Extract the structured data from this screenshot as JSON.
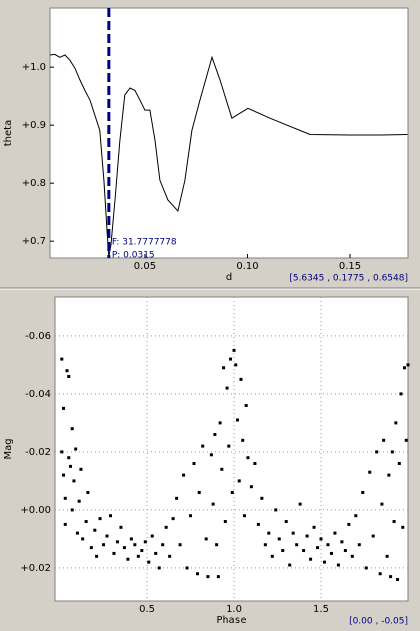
{
  "chart_data": [
    {
      "type": "line",
      "ylabel": "theta",
      "xlabel": "d",
      "color": "#000000",
      "grid": false,
      "x": [
        0.0037,
        0.0061,
        0.0085,
        0.011,
        0.0134,
        0.0159,
        0.0183,
        0.0207,
        0.0232,
        0.0256,
        0.028,
        0.03,
        0.0315,
        0.0324,
        0.0334,
        0.0354,
        0.0378,
        0.0402,
        0.0427,
        0.0451,
        0.0476,
        0.05,
        0.0524,
        0.0549,
        0.0573,
        0.0612,
        0.0661,
        0.0695,
        0.0729,
        0.0768,
        0.0827,
        0.0866,
        0.0924,
        0.1002,
        0.111,
        0.1256,
        0.1305,
        0.15,
        0.1646,
        0.178
      ],
      "values": [
        1.021,
        1.022,
        1.017,
        1.021,
        1.012,
        0.998,
        0.978,
        0.96,
        0.943,
        0.917,
        0.891,
        0.805,
        0.719,
        0.673,
        0.693,
        0.771,
        0.874,
        0.952,
        0.964,
        0.96,
        0.943,
        0.926,
        0.926,
        0.874,
        0.805,
        0.771,
        0.752,
        0.805,
        0.891,
        0.943,
        1.017,
        0.978,
        0.912,
        0.929,
        0.912,
        0.891,
        0.884,
        0.883,
        0.883,
        0.884
      ],
      "xlim": [
        0.0037,
        0.1783
      ],
      "ylim": [
        0.671,
        1.102
      ],
      "xticks": [
        0.05,
        {
          "value": 0.1,
          "label": "0.10"
        },
        0.15
      ],
      "yticks": [
        {
          "value": 0.7,
          "label": "+0.7"
        },
        {
          "value": 0.8,
          "label": "+0.8"
        },
        {
          "value": 0.9,
          "label": "+0.9"
        },
        {
          "value": 1.0,
          "label": "+1.0"
        }
      ],
      "marker_x": 0.0324,
      "marker_color": "#000080",
      "annotations": [
        "F: 31.7777778",
        "P: 0.0315"
      ],
      "status": "[5.6345 , 0.1775 , 0.6548]"
    },
    {
      "type": "scatter",
      "ylabel": "Mag",
      "xlabel": "Phase",
      "color": "#000000",
      "grid": true,
      "x": [
        0.01,
        0.02,
        0.01,
        0.02,
        0.03,
        0.03,
        0.04,
        0.05,
        0.05,
        0.06,
        0.07,
        0.07,
        0.08,
        0.09,
        0.1,
        0.11,
        0.12,
        0.13,
        0.15,
        0.16,
        0.18,
        0.2,
        0.21,
        0.23,
        0.25,
        0.27,
        0.29,
        0.31,
        0.33,
        0.35,
        0.37,
        0.39,
        0.41,
        0.43,
        0.45,
        0.47,
        0.49,
        0.51,
        0.53,
        0.55,
        0.57,
        0.59,
        0.61,
        0.63,
        0.65,
        0.67,
        0.69,
        0.71,
        0.73,
        0.75,
        0.77,
        0.79,
        0.8,
        0.82,
        0.84,
        0.85,
        0.87,
        0.88,
        0.89,
        0.9,
        0.91,
        0.92,
        0.93,
        0.94,
        0.95,
        0.96,
        0.97,
        0.98,
        0.99,
        1.0,
        1.01,
        1.02,
        1.03,
        1.04,
        1.05,
        1.06,
        1.07,
        1.08,
        1.1,
        1.12,
        1.14,
        1.16,
        1.18,
        1.2,
        1.22,
        1.24,
        1.26,
        1.28,
        1.3,
        1.32,
        1.34,
        1.36,
        1.38,
        1.4,
        1.42,
        1.44,
        1.46,
        1.48,
        1.5,
        1.52,
        1.54,
        1.56,
        1.58,
        1.6,
        1.62,
        1.64,
        1.66,
        1.68,
        1.7,
        1.72,
        1.74,
        1.76,
        1.78,
        1.8,
        1.82,
        1.84,
        1.85,
        1.86,
        1.88,
        1.89,
        1.9,
        1.91,
        1.92,
        1.93,
        1.94,
        1.95,
        1.96,
        1.97,
        1.98,
        1.99,
        2.0
      ],
      "values": [
        -0.052,
        -0.035,
        -0.02,
        -0.012,
        -0.004,
        0.005,
        -0.048,
        -0.046,
        -0.018,
        -0.015,
        -0.028,
        0.0,
        -0.01,
        -0.021,
        0.008,
        -0.003,
        -0.014,
        0.01,
        0.004,
        -0.006,
        0.013,
        0.007,
        0.016,
        0.003,
        0.012,
        0.009,
        0.002,
        0.015,
        0.011,
        0.006,
        0.013,
        0.017,
        0.01,
        0.012,
        0.016,
        0.014,
        0.011,
        0.018,
        0.009,
        0.015,
        0.02,
        0.012,
        0.006,
        0.016,
        0.003,
        -0.004,
        0.012,
        -0.012,
        0.02,
        0.002,
        -0.016,
        0.022,
        -0.006,
        -0.022,
        0.01,
        0.023,
        -0.019,
        -0.002,
        -0.026,
        0.012,
        0.023,
        -0.03,
        -0.014,
        -0.049,
        0.004,
        -0.042,
        -0.022,
        -0.052,
        -0.006,
        -0.055,
        -0.05,
        -0.031,
        -0.01,
        -0.045,
        -0.024,
        0.002,
        -0.036,
        -0.018,
        -0.008,
        -0.016,
        0.005,
        -0.004,
        0.012,
        0.008,
        0.016,
        0.0,
        0.01,
        0.014,
        0.004,
        0.019,
        0.008,
        0.012,
        -0.002,
        0.014,
        0.009,
        0.017,
        0.006,
        0.013,
        0.01,
        0.018,
        0.012,
        0.015,
        0.008,
        0.019,
        0.011,
        0.014,
        0.005,
        0.016,
        0.002,
        0.012,
        -0.006,
        0.02,
        -0.013,
        0.009,
        -0.02,
        0.022,
        -0.002,
        -0.024,
        0.016,
        -0.012,
        0.023,
        -0.02,
        0.004,
        -0.03,
        0.024,
        -0.016,
        -0.04,
        0.006,
        -0.049,
        -0.024,
        -0.05
      ],
      "xlim": [
        -0.029,
        2.0
      ],
      "ylim": [
        0.0314,
        -0.0734
      ],
      "xticks": [
        0.5,
        {
          "value": 1.0,
          "label": "1.0"
        },
        1.5
      ],
      "yticks": [
        -0.06,
        -0.04,
        -0.02,
        {
          "value": 0.0,
          "label": "+0.00"
        },
        {
          "value": 0.02,
          "label": "+0.02"
        }
      ],
      "status": "[0.00 , -0.05]"
    }
  ]
}
